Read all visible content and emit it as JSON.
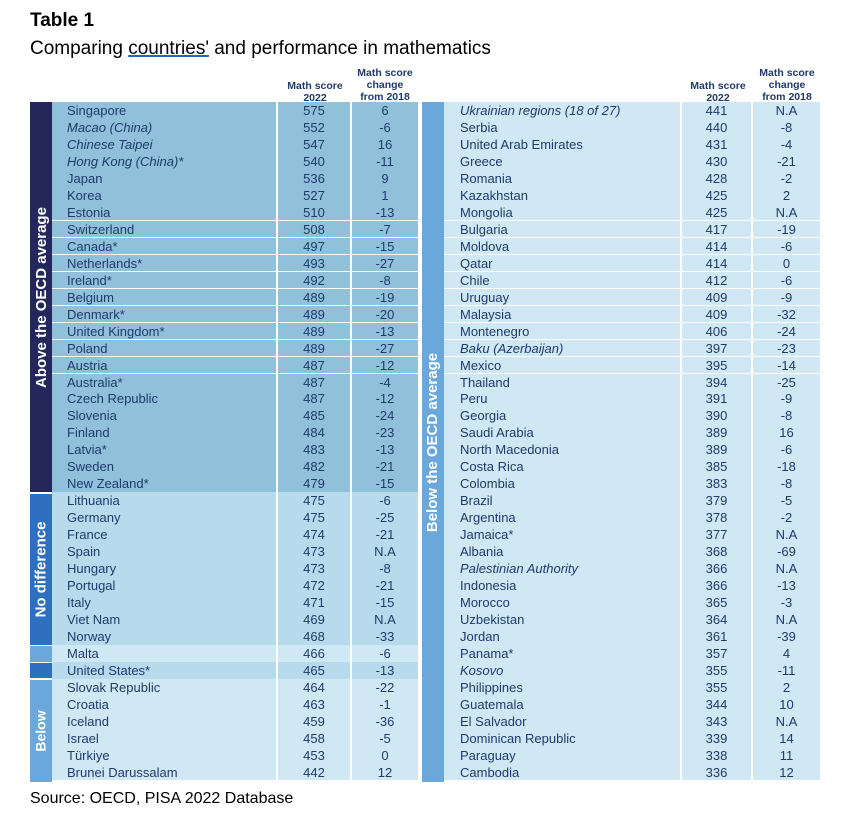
{
  "title": "Table 1",
  "subtitle_pre": "Comparing ",
  "subtitle_ul": "countries'",
  "subtitle_post": " and performance in mathematics",
  "headers": {
    "score": [
      "Math score",
      "2022"
    ],
    "change": [
      "Math score",
      "change",
      "from 2018"
    ]
  },
  "groups": {
    "above": "Above the OECD average",
    "nodiff": "No difference",
    "below_short": "Below",
    "below_long": "Below the OECD average"
  },
  "colors": {
    "above_band": "#24275c",
    "nodiff_band": "#2f6fc0",
    "below_band": "#6aa8dc",
    "above_row": "#90c0da",
    "nodiff_row": "#b7dbed",
    "below_row": "#cfe8f4",
    "text": "#1f3a6b"
  },
  "left_rows": [
    {
      "country": "Singapore",
      "score": "575",
      "change": "6",
      "italic": false,
      "group": "above"
    },
    {
      "country": "Macao (China)",
      "score": "552",
      "change": "-6",
      "italic": true,
      "group": "above"
    },
    {
      "country": "Chinese Taipei",
      "score": "547",
      "change": "16",
      "italic": true,
      "group": "above"
    },
    {
      "country": "Hong Kong (China)*",
      "score": "540",
      "change": "-11",
      "italic": true,
      "group": "above"
    },
    {
      "country": "Japan",
      "score": "536",
      "change": "9",
      "italic": false,
      "group": "above"
    },
    {
      "country": "Korea",
      "score": "527",
      "change": "1",
      "italic": false,
      "group": "above"
    },
    {
      "country": "Estonia",
      "score": "510",
      "change": "-13",
      "italic": false,
      "group": "above"
    },
    {
      "country": "Switzerland",
      "score": "508",
      "change": "-7",
      "italic": false,
      "group": "above"
    },
    {
      "country": "Canada*",
      "score": "497",
      "change": "-15",
      "italic": false,
      "group": "above"
    },
    {
      "country": "Netherlands*",
      "score": "493",
      "change": "-27",
      "italic": false,
      "group": "above"
    },
    {
      "country": "Ireland*",
      "score": "492",
      "change": "-8",
      "italic": false,
      "group": "above"
    },
    {
      "country": "Belgium",
      "score": "489",
      "change": "-19",
      "italic": false,
      "group": "above"
    },
    {
      "country": "Denmark*",
      "score": "489",
      "change": "-20",
      "italic": false,
      "group": "above"
    },
    {
      "country": "United Kingdom*",
      "score": "489",
      "change": "-13",
      "italic": false,
      "group": "above"
    },
    {
      "country": "Poland",
      "score": "489",
      "change": "-27",
      "italic": false,
      "group": "above"
    },
    {
      "country": "Austria",
      "score": "487",
      "change": "-12",
      "italic": false,
      "group": "above"
    },
    {
      "country": "Australia*",
      "score": "487",
      "change": "-4",
      "italic": false,
      "group": "above"
    },
    {
      "country": "Czech Republic",
      "score": "487",
      "change": "-12",
      "italic": false,
      "group": "above"
    },
    {
      "country": "Slovenia",
      "score": "485",
      "change": "-24",
      "italic": false,
      "group": "above"
    },
    {
      "country": "Finland",
      "score": "484",
      "change": "-23",
      "italic": false,
      "group": "above"
    },
    {
      "country": "Latvia*",
      "score": "483",
      "change": "-13",
      "italic": false,
      "group": "above"
    },
    {
      "country": "Sweden",
      "score": "482",
      "change": "-21",
      "italic": false,
      "group": "above"
    },
    {
      "country": "New Zealand*",
      "score": "479",
      "change": "-15",
      "italic": false,
      "group": "above"
    },
    {
      "country": "Lithuania",
      "score": "475",
      "change": "-6",
      "italic": false,
      "group": "nodiff"
    },
    {
      "country": "Germany",
      "score": "475",
      "change": "-25",
      "italic": false,
      "group": "nodiff"
    },
    {
      "country": "France",
      "score": "474",
      "change": "-21",
      "italic": false,
      "group": "nodiff"
    },
    {
      "country": "Spain",
      "score": "473",
      "change": "N.A",
      "italic": false,
      "group": "nodiff"
    },
    {
      "country": "Hungary",
      "score": "473",
      "change": "-8",
      "italic": false,
      "group": "nodiff"
    },
    {
      "country": "Portugal",
      "score": "472",
      "change": "-21",
      "italic": false,
      "group": "nodiff"
    },
    {
      "country": "Italy",
      "score": "471",
      "change": "-15",
      "italic": false,
      "group": "nodiff"
    },
    {
      "country": "Viet Nam",
      "score": "469",
      "change": "N.A",
      "italic": false,
      "group": "nodiff"
    },
    {
      "country": "Norway",
      "score": "468",
      "change": "-33",
      "italic": false,
      "group": "nodiff"
    },
    {
      "country": "Malta",
      "score": "466",
      "change": "-6",
      "italic": false,
      "group": "below"
    },
    {
      "country": "United States*",
      "score": "465",
      "change": "-13",
      "italic": false,
      "group": "nodiff"
    },
    {
      "country": "Slovak Republic",
      "score": "464",
      "change": "-22",
      "italic": false,
      "group": "below"
    },
    {
      "country": "Croatia",
      "score": "463",
      "change": "-1",
      "italic": false,
      "group": "below"
    },
    {
      "country": "Iceland",
      "score": "459",
      "change": "-36",
      "italic": false,
      "group": "below"
    },
    {
      "country": "Israel",
      "score": "458",
      "change": "-5",
      "italic": false,
      "group": "below"
    },
    {
      "country": "Türkiye",
      "score": "453",
      "change": "0",
      "italic": false,
      "group": "below"
    },
    {
      "country": "Brunei Darussalam",
      "score": "442",
      "change": "12",
      "italic": false,
      "group": "below"
    }
  ],
  "right_rows": [
    {
      "country": "Ukrainian regions (18 of 27)",
      "score": "441",
      "change": "N.A",
      "italic": true
    },
    {
      "country": "Serbia",
      "score": "440",
      "change": "-8",
      "italic": false
    },
    {
      "country": "United Arab Emirates",
      "score": "431",
      "change": "-4",
      "italic": false
    },
    {
      "country": "Greece",
      "score": "430",
      "change": "-21",
      "italic": false
    },
    {
      "country": "Romania",
      "score": "428",
      "change": "-2",
      "italic": false
    },
    {
      "country": "Kazakhstan",
      "score": "425",
      "change": "2",
      "italic": false
    },
    {
      "country": "Mongolia",
      "score": "425",
      "change": "N.A",
      "italic": false
    },
    {
      "country": "Bulgaria",
      "score": "417",
      "change": "-19",
      "italic": false
    },
    {
      "country": "Moldova",
      "score": "414",
      "change": "-6",
      "italic": false
    },
    {
      "country": "Qatar",
      "score": "414",
      "change": "0",
      "italic": false
    },
    {
      "country": "Chile",
      "score": "412",
      "change": "-6",
      "italic": false
    },
    {
      "country": "Uruguay",
      "score": "409",
      "change": "-9",
      "italic": false
    },
    {
      "country": "Malaysia",
      "score": "409",
      "change": "-32",
      "italic": false
    },
    {
      "country": "Montenegro",
      "score": "406",
      "change": "-24",
      "italic": false
    },
    {
      "country": "Baku (Azerbaijan)",
      "score": "397",
      "change": "-23",
      "italic": true
    },
    {
      "country": "Mexico",
      "score": "395",
      "change": "-14",
      "italic": false
    },
    {
      "country": "Thailand",
      "score": "394",
      "change": "-25",
      "italic": false
    },
    {
      "country": "Peru",
      "score": "391",
      "change": "-9",
      "italic": false
    },
    {
      "country": "Georgia",
      "score": "390",
      "change": "-8",
      "italic": false
    },
    {
      "country": "Saudi Arabia",
      "score": "389",
      "change": "16",
      "italic": false
    },
    {
      "country": "North Macedonia",
      "score": "389",
      "change": "-6",
      "italic": false
    },
    {
      "country": "Costa Rica",
      "score": "385",
      "change": "-18",
      "italic": false
    },
    {
      "country": "Colombia",
      "score": "383",
      "change": "-8",
      "italic": false
    },
    {
      "country": "Brazil",
      "score": "379",
      "change": "-5",
      "italic": false
    },
    {
      "country": "Argentina",
      "score": "378",
      "change": "-2",
      "italic": false
    },
    {
      "country": "Jamaica*",
      "score": "377",
      "change": "N.A",
      "italic": false
    },
    {
      "country": "Albania",
      "score": "368",
      "change": "-69",
      "italic": false
    },
    {
      "country": "Palestinian Authority",
      "score": "366",
      "change": "N.A",
      "italic": true
    },
    {
      "country": "Indonesia",
      "score": "366",
      "change": "-13",
      "italic": false
    },
    {
      "country": "Morocco",
      "score": "365",
      "change": "-3",
      "italic": false
    },
    {
      "country": "Uzbekistan",
      "score": "364",
      "change": "N.A",
      "italic": false
    },
    {
      "country": "Jordan",
      "score": "361",
      "change": "-39",
      "italic": false
    },
    {
      "country": "Panama*",
      "score": "357",
      "change": "4",
      "italic": false
    },
    {
      "country": "Kosovo",
      "score": "355",
      "change": "-11",
      "italic": true
    },
    {
      "country": "Philippines",
      "score": "355",
      "change": "2",
      "italic": false
    },
    {
      "country": "Guatemala",
      "score": "344",
      "change": "10",
      "italic": false
    },
    {
      "country": "El Salvador",
      "score": "343",
      "change": "N.A",
      "italic": false
    },
    {
      "country": "Dominican Republic",
      "score": "339",
      "change": "14",
      "italic": false
    },
    {
      "country": "Paraguay",
      "score": "338",
      "change": "11",
      "italic": false
    },
    {
      "country": "Cambodia",
      "score": "336",
      "change": "12",
      "italic": false
    }
  ],
  "source": "Source: OECD, PISA 2022 Database"
}
